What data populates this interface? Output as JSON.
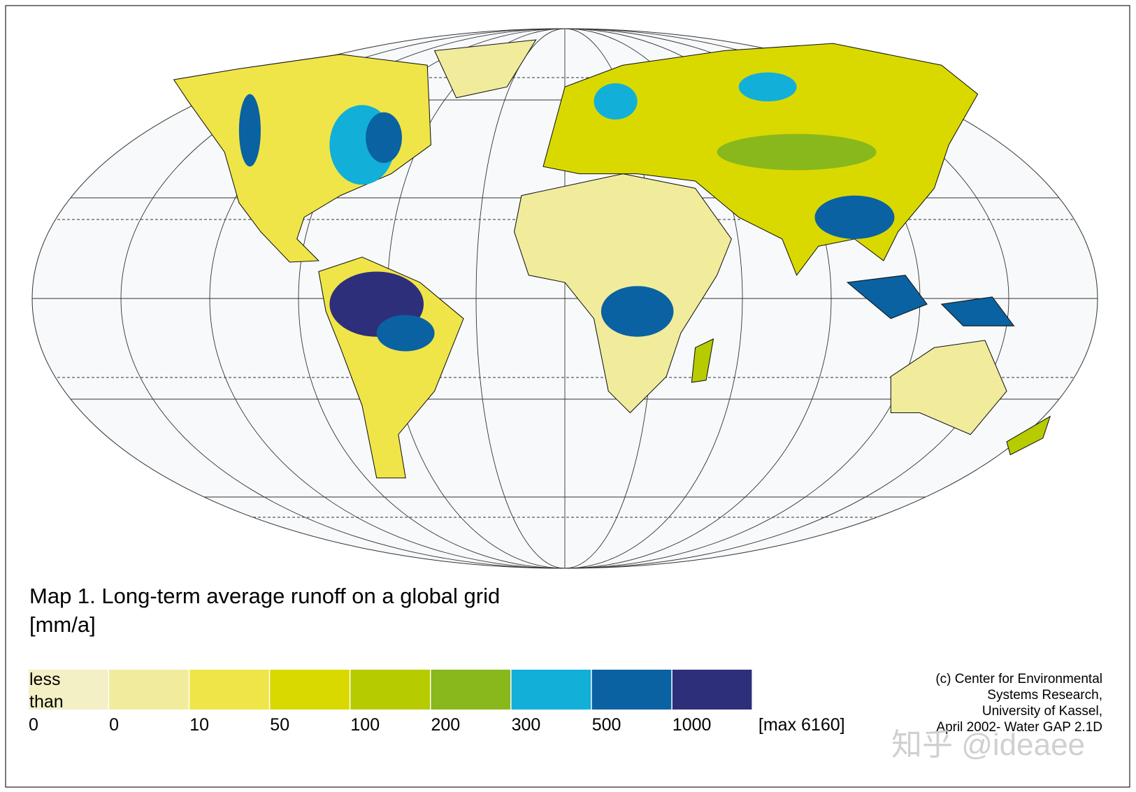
{
  "title": "Map 1. Long-term average runoff on a global grid",
  "unit": "[mm/a]",
  "legend": {
    "classes": [
      {
        "color": "#f4f0c6",
        "label": "less than"
      },
      {
        "color": "#f1ec9c"
      },
      {
        "color": "#f0e548"
      },
      {
        "color": "#d9d900"
      },
      {
        "color": "#b6cc00"
      },
      {
        "color": "#88b81c"
      },
      {
        "color": "#12afd9"
      },
      {
        "color": "#0a62a2"
      },
      {
        "color": "#2e2f7a"
      }
    ],
    "bounds": [
      0,
      0,
      10,
      50,
      100,
      200,
      300,
      500,
      1000,
      "[max 6160]"
    ]
  },
  "credit": [
    "(c) Center for Environmental",
    "Systems Research,",
    "University of Kassel,",
    "April 2002- Water GAP 2.1D"
  ],
  "watermark": "知乎 @ideaee"
}
